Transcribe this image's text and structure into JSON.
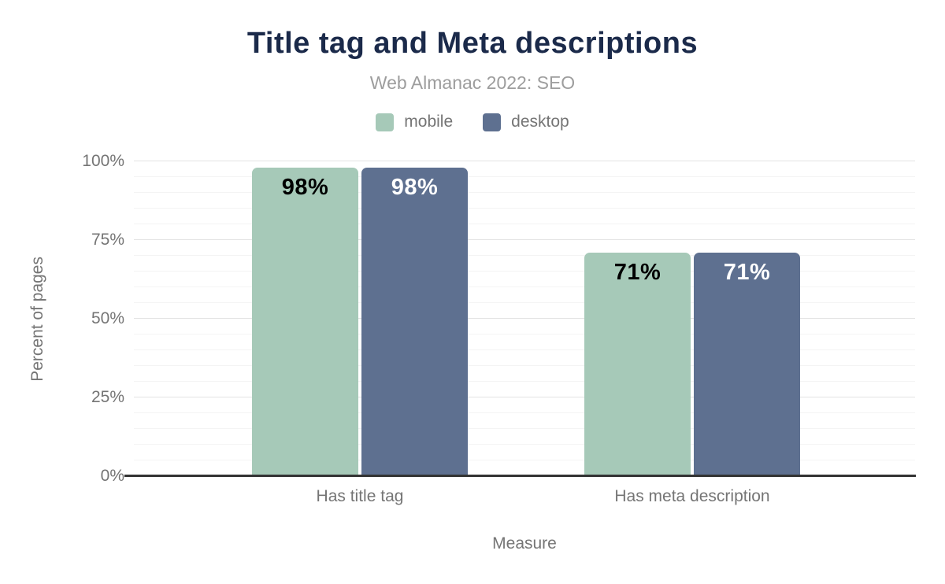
{
  "header": {
    "title": "Title tag and Meta descriptions",
    "subtitle": "Web Almanac 2022: SEO"
  },
  "legend": {
    "items": [
      {
        "label": "mobile",
        "color": "#a6c9b8"
      },
      {
        "label": "desktop",
        "color": "#5e7090"
      }
    ]
  },
  "chart_data": {
    "type": "bar",
    "title": "Title tag and Meta descriptions",
    "subtitle": "Web Almanac 2022: SEO",
    "categories": [
      "Has title tag",
      "Has meta description"
    ],
    "series": [
      {
        "name": "mobile",
        "values": [
          98,
          71
        ],
        "color": "#a6c9b8",
        "label_color": "#000000"
      },
      {
        "name": "desktop",
        "values": [
          98,
          71
        ],
        "color": "#5e7090",
        "label_color": "#ffffff"
      }
    ],
    "value_label_format": "{v}%",
    "xlabel": "Measure",
    "ylabel": "Percent of pages",
    "ylim": [
      0,
      100
    ],
    "yticks": [
      0,
      25,
      50,
      75,
      100
    ],
    "ytick_labels": [
      "0%",
      "25%",
      "50%",
      "75%",
      "100%"
    ],
    "grid": {
      "on": true,
      "minor_step": 5,
      "major_step": 25
    },
    "legend_position": "top"
  },
  "colors": {
    "title": "#1b2a4a",
    "subtitle": "#9d9d9d",
    "axis_text": "#757575",
    "axis_line": "#333333",
    "grid_minor": "#f4f4f4",
    "grid_major": "#e3e3e3",
    "background": "#ffffff"
  }
}
